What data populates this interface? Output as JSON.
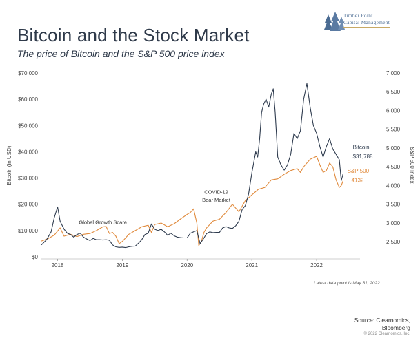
{
  "header": {
    "title": "Bitcoin and the Stock Market",
    "subtitle": "The price of Bitcoin and the S&P 500 price index"
  },
  "logo": {
    "line1": "Timber Point",
    "line2": "Capital Management",
    "icon": "pine-trees-icon"
  },
  "footer": {
    "latest": "Latest data point is May 31, 2022",
    "source_line1": "Source: Clearnomics,",
    "source_line2": "Bloomberg",
    "copyright": "© 2022 Clearnomics, Inc."
  },
  "chart_data": {
    "type": "line",
    "title": "Bitcoin and the Stock Market",
    "subtitle": "The price of Bitcoin and the S&P 500 price index",
    "ylabel": "Bitcoin (in USD)",
    "y2label": "S&P 500 Index",
    "ylim": [
      0,
      70000
    ],
    "y2lim": [
      2100,
      7000
    ],
    "x_range": [
      2017.75,
      2022.67
    ],
    "yticks": [
      "$0",
      "$10,000",
      "$20,000",
      "$30,000",
      "$40,000",
      "$50,000",
      "$60,000",
      "$70,000"
    ],
    "yticks_values": [
      0,
      10000,
      20000,
      30000,
      40000,
      50000,
      60000,
      70000
    ],
    "y2ticks": [
      "2,500",
      "3,000",
      "3,500",
      "4,000",
      "4,500",
      "5,000",
      "5,500",
      "6,000",
      "6,500",
      "7,000"
    ],
    "y2ticks_values": [
      2500,
      3000,
      3500,
      4000,
      4500,
      5000,
      5500,
      6000,
      6500,
      7000
    ],
    "xticks": [
      "2018",
      "2019",
      "2020",
      "2021",
      "2022"
    ],
    "xticks_values": [
      2018,
      2019,
      2020,
      2021,
      2022
    ],
    "grid": false,
    "colors": {
      "bitcoin": "#2e3b4e",
      "sp500": "#e08a3c"
    },
    "annotations": [
      {
        "text": "Global Growth Scare",
        "x": 2018.7,
        "y": 12500
      },
      {
        "text": "COVID-19",
        "x": 2020.45,
        "y": 24000
      },
      {
        "text": "Bear Market",
        "x": 2020.45,
        "y": 21000
      }
    ],
    "end_labels": {
      "bitcoin_name": "Bitcoin",
      "bitcoin_value": "$31,788",
      "sp500_name": "S&P 500",
      "sp500_value": "4132"
    },
    "series": [
      {
        "name": "Bitcoin",
        "axis": "left",
        "x": [
          2017.75,
          2017.83,
          2017.9,
          2017.95,
          2018.0,
          2018.04,
          2018.1,
          2018.15,
          2018.2,
          2018.25,
          2018.3,
          2018.35,
          2018.4,
          2018.45,
          2018.5,
          2018.55,
          2018.6,
          2018.65,
          2018.7,
          2018.75,
          2018.8,
          2018.85,
          2018.9,
          2018.95,
          2019.0,
          2019.05,
          2019.1,
          2019.15,
          2019.2,
          2019.25,
          2019.3,
          2019.35,
          2019.4,
          2019.45,
          2019.5,
          2019.55,
          2019.6,
          2019.65,
          2019.7,
          2019.75,
          2019.8,
          2019.85,
          2019.9,
          2019.95,
          2020.0,
          2020.05,
          2020.1,
          2020.15,
          2020.2,
          2020.25,
          2020.3,
          2020.35,
          2020.4,
          2020.45,
          2020.5,
          2020.55,
          2020.6,
          2020.65,
          2020.7,
          2020.75,
          2020.8,
          2020.85,
          2020.9,
          2020.95,
          2021.0,
          2021.03,
          2021.06,
          2021.09,
          2021.12,
          2021.15,
          2021.18,
          2021.22,
          2021.26,
          2021.3,
          2021.33,
          2021.36,
          2021.4,
          2021.45,
          2021.5,
          2021.55,
          2021.6,
          2021.65,
          2021.7,
          2021.75,
          2021.8,
          2021.85,
          2021.9,
          2021.95,
          2022.0,
          2022.05,
          2022.1,
          2022.15,
          2022.2,
          2022.25,
          2022.3,
          2022.35,
          2022.38,
          2022.41
        ],
        "values": [
          4500,
          6500,
          9500,
          15000,
          19000,
          13500,
          10500,
          9000,
          8500,
          7500,
          8500,
          9000,
          7500,
          6800,
          6200,
          7000,
          6500,
          6500,
          6400,
          6500,
          6300,
          4500,
          3800,
          3600,
          3700,
          3500,
          3800,
          4000,
          4100,
          5200,
          6500,
          8500,
          9000,
          12500,
          10500,
          10000,
          10500,
          9500,
          8200,
          9000,
          8000,
          7500,
          7300,
          7200,
          7200,
          9000,
          9500,
          10000,
          5000,
          6800,
          8800,
          9500,
          9200,
          9300,
          9300,
          11000,
          11500,
          11000,
          10800,
          11800,
          13500,
          18000,
          19500,
          24000,
          32000,
          36000,
          40000,
          38000,
          45000,
          55000,
          58000,
          60000,
          57000,
          62000,
          64000,
          55000,
          38000,
          35000,
          33000,
          35000,
          39000,
          47000,
          45000,
          48000,
          60000,
          66000,
          57000,
          50000,
          47000,
          42000,
          38000,
          42000,
          45000,
          41000,
          39000,
          37000,
          29000,
          31788
        ]
      },
      {
        "name": "S&P 500",
        "axis": "right",
        "x": [
          2017.75,
          2017.85,
          2017.95,
          2018.04,
          2018.1,
          2018.2,
          2018.3,
          2018.4,
          2018.5,
          2018.6,
          2018.7,
          2018.75,
          2018.8,
          2018.85,
          2018.9,
          2018.95,
          2019.0,
          2019.1,
          2019.2,
          2019.3,
          2019.4,
          2019.45,
          2019.5,
          2019.6,
          2019.7,
          2019.8,
          2019.9,
          2020.0,
          2020.05,
          2020.1,
          2020.15,
          2020.18,
          2020.22,
          2020.26,
          2020.3,
          2020.4,
          2020.5,
          2020.6,
          2020.7,
          2020.8,
          2020.9,
          2021.0,
          2021.1,
          2021.2,
          2021.3,
          2021.4,
          2021.5,
          2021.6,
          2021.7,
          2021.75,
          2021.8,
          2021.9,
          2022.0,
          2022.05,
          2022.1,
          2022.15,
          2022.2,
          2022.25,
          2022.3,
          2022.35,
          2022.38,
          2022.41
        ],
        "values": [
          2520,
          2580,
          2680,
          2870,
          2650,
          2700,
          2640,
          2700,
          2720,
          2800,
          2900,
          2910,
          2720,
          2750,
          2650,
          2450,
          2510,
          2700,
          2800,
          2900,
          2940,
          2750,
          2960,
          3000,
          2900,
          2980,
          3110,
          3230,
          3280,
          3380,
          3000,
          2400,
          2500,
          2750,
          2870,
          3050,
          3100,
          3280,
          3500,
          3300,
          3600,
          3750,
          3900,
          3950,
          4150,
          4180,
          4300,
          4400,
          4450,
          4350,
          4500,
          4700,
          4780,
          4550,
          4350,
          4400,
          4600,
          4500,
          4150,
          3950,
          4000,
          4132
        ]
      }
    ]
  }
}
